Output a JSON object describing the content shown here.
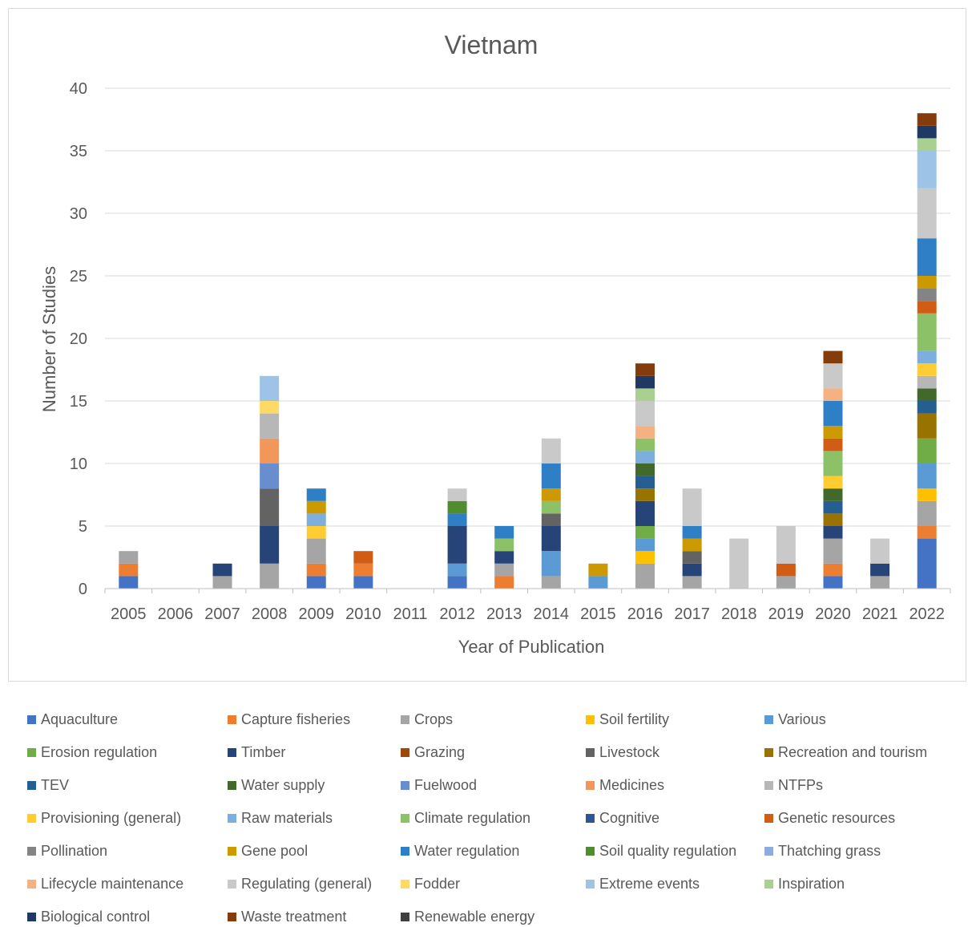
{
  "chart_data": {
    "type": "bar",
    "stacked": true,
    "title": "Vietnam",
    "xlabel": "Year of Publication",
    "ylabel": "Number of Studies",
    "ylim": [
      0,
      40
    ],
    "yticks": [
      0,
      5,
      10,
      15,
      20,
      25,
      30,
      35,
      40
    ],
    "grid": true,
    "legend_position": "bottom",
    "categories": [
      "2005",
      "2006",
      "2007",
      "2008",
      "2009",
      "2010",
      "2011",
      "2012",
      "2013",
      "2014",
      "2015",
      "2016",
      "2017",
      "2018",
      "2019",
      "2020",
      "2021",
      "2022"
    ],
    "series": [
      {
        "name": "Aquaculture",
        "color": "#4472c4",
        "values": [
          1,
          0,
          0,
          0,
          1,
          1,
          0,
          1,
          0,
          0,
          0,
          0,
          0,
          0,
          0,
          1,
          0,
          4
        ]
      },
      {
        "name": "Capture fisheries",
        "color": "#ed7d31",
        "values": [
          1,
          0,
          0,
          0,
          1,
          1,
          0,
          0,
          1,
          0,
          0,
          0,
          0,
          0,
          0,
          1,
          0,
          1
        ]
      },
      {
        "name": "Crops",
        "color": "#a5a5a5",
        "values": [
          1,
          0,
          1,
          2,
          2,
          0,
          0,
          0,
          1,
          1,
          0,
          2,
          1,
          0,
          1,
          2,
          1,
          2
        ]
      },
      {
        "name": "Soil fertility",
        "color": "#ffc000",
        "values": [
          0,
          0,
          0,
          0,
          0,
          0,
          0,
          0,
          0,
          0,
          0,
          1,
          0,
          0,
          0,
          0,
          0,
          1
        ]
      },
      {
        "name": "Various",
        "color": "#5b9bd5",
        "values": [
          0,
          0,
          0,
          0,
          0,
          0,
          0,
          1,
          0,
          2,
          1,
          1,
          0,
          0,
          0,
          0,
          0,
          2
        ]
      },
      {
        "name": "Erosion regulation",
        "color": "#70ad47",
        "values": [
          0,
          0,
          0,
          0,
          0,
          0,
          0,
          0,
          0,
          0,
          0,
          1,
          0,
          0,
          0,
          0,
          0,
          2
        ]
      },
      {
        "name": "Timber",
        "color": "#264478",
        "values": [
          0,
          0,
          1,
          3,
          0,
          0,
          0,
          3,
          1,
          2,
          0,
          2,
          1,
          0,
          0,
          1,
          1,
          0
        ]
      },
      {
        "name": "Grazing",
        "color": "#9e480e",
        "values": [
          0,
          0,
          0,
          0,
          0,
          0,
          0,
          0,
          0,
          0,
          0,
          0,
          0,
          0,
          0,
          0,
          0,
          0
        ]
      },
      {
        "name": "Livestock",
        "color": "#636363",
        "values": [
          0,
          0,
          0,
          3,
          0,
          0,
          0,
          0,
          0,
          1,
          0,
          0,
          1,
          0,
          0,
          0,
          0,
          0
        ]
      },
      {
        "name": "Recreation and tourism",
        "color": "#997300",
        "values": [
          0,
          0,
          0,
          0,
          0,
          0,
          0,
          0,
          0,
          0,
          0,
          1,
          0,
          0,
          0,
          1,
          0,
          2
        ]
      },
      {
        "name": "TEV",
        "color": "#255e91",
        "values": [
          0,
          0,
          0,
          0,
          0,
          0,
          0,
          0,
          0,
          0,
          0,
          1,
          0,
          0,
          0,
          1,
          0,
          1
        ]
      },
      {
        "name": "Water supply",
        "color": "#43682b",
        "values": [
          0,
          0,
          0,
          0,
          0,
          0,
          0,
          0,
          0,
          0,
          0,
          1,
          0,
          0,
          0,
          1,
          0,
          1
        ]
      },
      {
        "name": "Fuelwood",
        "color": "#698ed0",
        "values": [
          0,
          0,
          0,
          2,
          0,
          0,
          0,
          0,
          0,
          0,
          0,
          0,
          0,
          0,
          0,
          0,
          0,
          0
        ]
      },
      {
        "name": "Medicines",
        "color": "#f1975a",
        "values": [
          0,
          0,
          0,
          2,
          0,
          0,
          0,
          0,
          0,
          0,
          0,
          0,
          0,
          0,
          0,
          0,
          0,
          0
        ]
      },
      {
        "name": "NTFPs",
        "color": "#b7b7b7",
        "values": [
          0,
          0,
          0,
          2,
          0,
          0,
          0,
          0,
          0,
          0,
          0,
          0,
          0,
          0,
          0,
          0,
          0,
          1
        ]
      },
      {
        "name": "Provisioning (general)",
        "color": "#ffcd33",
        "values": [
          0,
          0,
          0,
          0,
          1,
          0,
          0,
          0,
          0,
          0,
          0,
          0,
          0,
          0,
          0,
          1,
          0,
          1
        ]
      },
      {
        "name": "Raw materials",
        "color": "#7cafdd",
        "values": [
          0,
          0,
          0,
          0,
          1,
          0,
          0,
          0,
          0,
          0,
          0,
          1,
          0,
          0,
          0,
          0,
          0,
          1
        ]
      },
      {
        "name": "Climate regulation",
        "color": "#8cc168",
        "values": [
          0,
          0,
          0,
          0,
          0,
          0,
          0,
          0,
          1,
          1,
          0,
          1,
          0,
          0,
          0,
          2,
          0,
          3
        ]
      },
      {
        "name": "Cognitive",
        "color": "#2e5597",
        "values": [
          0,
          0,
          0,
          0,
          0,
          0,
          0,
          0,
          0,
          0,
          0,
          0,
          0,
          0,
          0,
          0,
          0,
          0
        ]
      },
      {
        "name": "Genetic resources",
        "color": "#d15d15",
        "values": [
          0,
          0,
          0,
          0,
          0,
          1,
          0,
          0,
          0,
          0,
          0,
          0,
          0,
          0,
          1,
          1,
          0,
          1
        ]
      },
      {
        "name": "Pollination",
        "color": "#848484",
        "values": [
          0,
          0,
          0,
          0,
          0,
          0,
          0,
          0,
          0,
          0,
          0,
          0,
          0,
          0,
          0,
          0,
          0,
          1
        ]
      },
      {
        "name": "Gene pool",
        "color": "#cc9a00",
        "values": [
          0,
          0,
          0,
          0,
          1,
          0,
          0,
          0,
          0,
          1,
          1,
          0,
          1,
          0,
          0,
          1,
          0,
          1
        ]
      },
      {
        "name": "Water regulation",
        "color": "#2f7fc7",
        "values": [
          0,
          0,
          0,
          0,
          1,
          0,
          0,
          1,
          1,
          2,
          0,
          0,
          1,
          0,
          0,
          2,
          0,
          3
        ]
      },
      {
        "name": "Soil quality regulation",
        "color": "#4f8d2f",
        "values": [
          0,
          0,
          0,
          0,
          0,
          0,
          0,
          1,
          0,
          0,
          0,
          0,
          0,
          0,
          0,
          0,
          0,
          0
        ]
      },
      {
        "name": "Thatching grass",
        "color": "#8faadc",
        "values": [
          0,
          0,
          0,
          0,
          0,
          0,
          0,
          0,
          0,
          0,
          0,
          0,
          0,
          0,
          0,
          0,
          0,
          0
        ]
      },
      {
        "name": "Lifecycle maintenance",
        "color": "#f4b183",
        "values": [
          0,
          0,
          0,
          0,
          0,
          0,
          0,
          0,
          0,
          0,
          0,
          1,
          0,
          0,
          0,
          1,
          0,
          0
        ]
      },
      {
        "name": "Regulating (general)",
        "color": "#c9c9c9",
        "values": [
          0,
          0,
          0,
          0,
          0,
          0,
          0,
          1,
          0,
          2,
          0,
          2,
          3,
          4,
          3,
          2,
          2,
          4
        ]
      },
      {
        "name": "Fodder",
        "color": "#ffd966",
        "values": [
          0,
          0,
          0,
          1,
          0,
          0,
          0,
          0,
          0,
          0,
          0,
          0,
          0,
          0,
          0,
          0,
          0,
          0
        ]
      },
      {
        "name": "Extreme events",
        "color": "#9dc3e6",
        "values": [
          0,
          0,
          0,
          2,
          0,
          0,
          0,
          0,
          0,
          0,
          0,
          0,
          0,
          0,
          0,
          0,
          0,
          3
        ]
      },
      {
        "name": "Inspiration",
        "color": "#a9d08e",
        "values": [
          0,
          0,
          0,
          0,
          0,
          0,
          0,
          0,
          0,
          0,
          0,
          1,
          0,
          0,
          0,
          0,
          0,
          1
        ]
      },
      {
        "name": "Biological control",
        "color": "#203864",
        "values": [
          0,
          0,
          0,
          0,
          0,
          0,
          0,
          0,
          0,
          0,
          0,
          1,
          0,
          0,
          0,
          0,
          0,
          1
        ]
      },
      {
        "name": "Waste treatment",
        "color": "#843c0c",
        "values": [
          0,
          0,
          0,
          0,
          0,
          0,
          0,
          0,
          0,
          0,
          0,
          1,
          0,
          0,
          0,
          1,
          0,
          1
        ]
      },
      {
        "name": "Renewable energy",
        "color": "#404040",
        "values": [
          0,
          0,
          0,
          0,
          0,
          0,
          0,
          0,
          0,
          0,
          0,
          0,
          0,
          0,
          0,
          0,
          0,
          0
        ]
      }
    ]
  }
}
